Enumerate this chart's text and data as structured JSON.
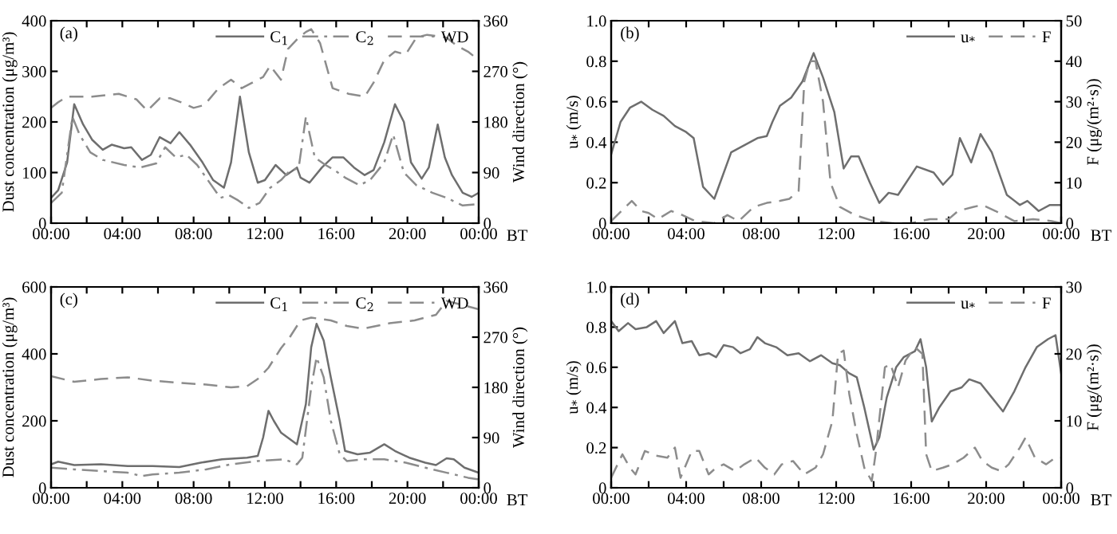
{
  "chart_data": [
    {
      "type": "line",
      "title": "(a)",
      "xlabel": "BT",
      "ylabel": "Dust concentration (μg/m³)",
      "y2label": "Wind direction (°)",
      "legend": "top right",
      "xlim": [
        0,
        24
      ],
      "xticks": [
        {
          "value": 0,
          "label": "00:00"
        },
        {
          "value": 2,
          "label": null
        },
        {
          "value": 4,
          "label": "04:00"
        },
        {
          "value": 6,
          "label": null
        },
        {
          "value": 8,
          "label": "08:00"
        },
        {
          "value": 10,
          "label": null
        },
        {
          "value": 12,
          "label": "12:00"
        },
        {
          "value": 14,
          "label": null
        },
        {
          "value": 16,
          "label": "16:00"
        },
        {
          "value": 18,
          "label": null
        },
        {
          "value": 20,
          "label": "20:00"
        },
        {
          "value": 22,
          "label": null
        },
        {
          "value": 24,
          "label": "00:00"
        }
      ],
      "ylim": [
        0,
        400
      ],
      "yticks": [
        0,
        100,
        200,
        300,
        400
      ],
      "y2lim": [
        0,
        360
      ],
      "y2ticks": [
        0,
        90,
        180,
        270,
        360
      ],
      "series": [
        {
          "name": "C$_{1}$",
          "color": "#6e6e6e",
          "line_style": "solid",
          "x": [
            0,
            0.4,
            0.9,
            1.3,
            1.8,
            2.3,
            2.9,
            3.4,
            4.1,
            4.5,
            5.1,
            5.6,
            6.1,
            6.7,
            7.2,
            7.8,
            8.5,
            9.1,
            9.7,
            10.1,
            10.6,
            11.1,
            11.6,
            12.0,
            12.6,
            13.2,
            13.8,
            14.0,
            14.5,
            15.2,
            15.8,
            16.4,
            17.0,
            17.6,
            18.1,
            18.7,
            19.3,
            19.8,
            20.2,
            20.8,
            21.2,
            21.7,
            22.1,
            22.5,
            23.1,
            23.6,
            24
          ],
          "values": [
            50,
            65,
            120,
            235,
            195,
            165,
            145,
            155,
            148,
            150,
            125,
            135,
            170,
            158,
            180,
            155,
            120,
            85,
            70,
            120,
            250,
            140,
            80,
            85,
            115,
            95,
            110,
            90,
            80,
            110,
            130,
            130,
            110,
            95,
            105,
            160,
            235,
            200,
            120,
            88,
            110,
            195,
            130,
            95,
            60,
            52,
            60
          ]
        },
        {
          "name": "C$_{2}$",
          "color": "#8c8c8c",
          "line_style": "dashdot",
          "x": [
            0,
            0.6,
            1.2,
            1.6,
            2.2,
            2.9,
            4.1,
            5.0,
            5.9,
            6.4,
            7.0,
            7.6,
            8.2,
            8.8,
            9.5,
            10.0,
            10.5,
            11.1,
            11.7,
            12.3,
            12.9,
            13.3,
            13.9,
            14.3,
            14.8,
            15.4,
            15.9,
            16.5,
            17.3,
            17.9,
            18.7,
            19.2,
            19.8,
            20.5,
            21.4,
            22.2,
            23.1,
            24
          ],
          "values": [
            40,
            60,
            210,
            175,
            140,
            125,
            115,
            110,
            118,
            150,
            130,
            135,
            115,
            85,
            50,
            55,
            45,
            30,
            40,
            70,
            85,
            100,
            110,
            210,
            130,
            115,
            105,
            90,
            75,
            85,
            120,
            175,
            100,
            75,
            60,
            50,
            35,
            38
          ]
        },
        {
          "name": "WD",
          "color": "#8c8c8c",
          "line_style": "dashed",
          "axis": "y2",
          "x": [
            0,
            0.4,
            0.9,
            2.3,
            3.8,
            4.8,
            5.4,
            6.1,
            6.7,
            7.3,
            8.0,
            8.6,
            9.4,
            10.1,
            10.7,
            11.3,
            11.9,
            12.3,
            12.9,
            13.3,
            13.9,
            14.3,
            14.6,
            15.1,
            15.8,
            16.7,
            17.6,
            18.1,
            18.7,
            19.3,
            19.9,
            20.5,
            21.1,
            22.2,
            22.8,
            23.4,
            24
          ],
          "values": [
            205,
            215,
            225,
            225,
            230,
            220,
            200,
            222,
            222,
            215,
            205,
            210,
            240,
            255,
            240,
            250,
            260,
            280,
            255,
            310,
            330,
            340,
            345,
            320,
            240,
            230,
            225,
            250,
            290,
            305,
            300,
            330,
            335,
            330,
            315,
            305,
            290
          ]
        }
      ]
    },
    {
      "type": "line",
      "title": "(b)",
      "xlabel": "BT",
      "ylabel": "u$_{*}$ (m/s)",
      "y2label": "F (μg/(m²·s))",
      "legend": "top right",
      "xlim": [
        0,
        24
      ],
      "xticks": [
        {
          "value": 0,
          "label": "00:00"
        },
        {
          "value": 2,
          "label": null
        },
        {
          "value": 4,
          "label": "04:00"
        },
        {
          "value": 6,
          "label": null
        },
        {
          "value": 8,
          "label": "08:00"
        },
        {
          "value": 10,
          "label": null
        },
        {
          "value": 12,
          "label": "12:00"
        },
        {
          "value": 14,
          "label": null
        },
        {
          "value": 16,
          "label": "16:00"
        },
        {
          "value": 18,
          "label": null
        },
        {
          "value": 20,
          "label": "20:00"
        },
        {
          "value": 22,
          "label": null
        },
        {
          "value": 24,
          "label": "00:00"
        }
      ],
      "ylim": [
        0,
        1
      ],
      "yticks": [
        0,
        0.2,
        0.4,
        0.6,
        0.8,
        {
          "value": 1,
          "label": "1.0"
        }
      ],
      "y2lim": [
        0,
        50
      ],
      "y2ticks": [
        0,
        10,
        20,
        30,
        40,
        50
      ],
      "series": [
        {
          "name": "u$_{*}$",
          "color": "#6e6e6e",
          "line_style": "solid",
          "x": [
            0,
            0.5,
            1.0,
            1.6,
            2.2,
            2.8,
            3.4,
            4.0,
            4.4,
            4.9,
            5.5,
            6.4,
            7.8,
            8.3,
            8.6,
            9.0,
            9.6,
            10.2,
            10.8,
            11.3,
            11.9,
            12.4,
            12.8,
            13.2,
            13.8,
            14.3,
            14.8,
            15.3,
            16.3,
            17.2,
            17.7,
            18.2,
            18.6,
            19.2,
            19.7,
            20.3,
            21.1,
            21.8,
            22.2,
            22.8,
            23.4,
            24
          ],
          "values": [
            0.34,
            0.5,
            0.57,
            0.6,
            0.56,
            0.53,
            0.48,
            0.45,
            0.42,
            0.18,
            0.12,
            0.35,
            0.42,
            0.43,
            0.5,
            0.58,
            0.62,
            0.7,
            0.84,
            0.72,
            0.55,
            0.27,
            0.33,
            0.33,
            0.2,
            0.1,
            0.15,
            0.14,
            0.28,
            0.25,
            0.19,
            0.24,
            0.42,
            0.3,
            0.44,
            0.35,
            0.14,
            0.09,
            0.11,
            0.06,
            0.09,
            0.09
          ]
        },
        {
          "name": "F",
          "color": "#8c8c8c",
          "line_style": "dashed",
          "axis": "y2",
          "x": [
            0,
            1.1,
            1.6,
            2.0,
            2.5,
            3.2,
            3.8,
            4.5,
            5.5,
            6.2,
            6.8,
            7.6,
            8.3,
            9.0,
            9.5,
            10.0,
            10.3,
            10.6,
            10.9,
            11.3,
            11.7,
            12.2,
            13.0,
            14.0,
            15.0,
            16.0,
            17.0,
            18.0,
            18.5,
            19.3,
            19.8,
            20.5,
            21.5,
            22.5,
            23.5,
            24
          ],
          "values": [
            0.5,
            5.5,
            3,
            2.5,
            1,
            3,
            2,
            0.5,
            0,
            2,
            0.5,
            4,
            5,
            5.5,
            6,
            8,
            35,
            40,
            40,
            30,
            10,
            4,
            2,
            0.5,
            0,
            0,
            1,
            1,
            3,
            4,
            4.5,
            3,
            0.5,
            1,
            0.5,
            0
          ]
        }
      ]
    },
    {
      "type": "line",
      "title": "(c)",
      "xlabel": "BT",
      "ylabel": "Dust concentration (μg/m³)",
      "y2label": "Wind direction (°)",
      "legend": "top right",
      "xlim": [
        0,
        24
      ],
      "xticks": [
        {
          "value": 0,
          "label": "00:00"
        },
        {
          "value": 2,
          "label": null
        },
        {
          "value": 4,
          "label": "04:00"
        },
        {
          "value": 6,
          "label": null
        },
        {
          "value": 8,
          "label": "08:00"
        },
        {
          "value": 10,
          "label": null
        },
        {
          "value": 12,
          "label": "12:00"
        },
        {
          "value": 14,
          "label": null
        },
        {
          "value": 16,
          "label": "16:00"
        },
        {
          "value": 18,
          "label": null
        },
        {
          "value": 20,
          "label": "20:00"
        },
        {
          "value": 22,
          "label": null
        },
        {
          "value": 24,
          "label": "00:00"
        }
      ],
      "ylim": [
        0,
        600
      ],
      "yticks": [
        0,
        200,
        400,
        600
      ],
      "y2lim": [
        0,
        360
      ],
      "y2ticks": [
        0,
        90,
        180,
        270,
        360
      ],
      "series": [
        {
          "name": "C$_{1}$",
          "color": "#6e6e6e",
          "line_style": "solid",
          "x": [
            0,
            0.4,
            1.3,
            2.8,
            4.3,
            5.7,
            7.2,
            8.4,
            9.6,
            11.0,
            11.6,
            11.9,
            12.2,
            12.5,
            12.9,
            13.8,
            14.3,
            14.6,
            14.9,
            15.3,
            15.7,
            16.2,
            16.5,
            17.2,
            17.9,
            18.7,
            19.3,
            20.1,
            21.0,
            21.6,
            22.2,
            22.6,
            23.2,
            24
          ],
          "values": [
            70,
            78,
            68,
            70,
            65,
            65,
            62,
            75,
            85,
            90,
            95,
            150,
            230,
            200,
            165,
            130,
            250,
            420,
            490,
            440,
            330,
            200,
            110,
            100,
            105,
            130,
            110,
            90,
            75,
            68,
            88,
            85,
            60,
            45
          ]
        },
        {
          "name": "C$_{2}$",
          "color": "#8c8c8c",
          "line_style": "dashdot",
          "x": [
            0,
            1.3,
            2.8,
            4.3,
            5.1,
            5.7,
            7.2,
            8.7,
            10.1,
            11.6,
            13.1,
            13.8,
            14.1,
            14.6,
            14.9,
            15.3,
            15.7,
            16.2,
            16.6,
            17.5,
            18.7,
            19.9,
            21.0,
            22.2,
            23.4,
            24
          ],
          "values": [
            60,
            55,
            50,
            45,
            35,
            40,
            45,
            55,
            70,
            80,
            85,
            70,
            90,
            300,
            390,
            330,
            200,
            100,
            80,
            85,
            85,
            75,
            60,
            45,
            30,
            25
          ]
        },
        {
          "name": "WD",
          "color": "#8c8c8c",
          "line_style": "dashed",
          "axis": "y2",
          "x": [
            0,
            1.3,
            2.8,
            4.3,
            5.7,
            7.2,
            8.7,
            10.1,
            11.0,
            11.6,
            12.2,
            12.9,
            13.4,
            14.0,
            14.6,
            15.7,
            16.6,
            17.5,
            19.0,
            20.4,
            21.6,
            22.2,
            22.8,
            23.4,
            24
          ],
          "values": [
            200,
            190,
            195,
            198,
            192,
            188,
            185,
            180,
            182,
            195,
            215,
            250,
            270,
            300,
            305,
            300,
            290,
            285,
            295,
            300,
            310,
            335,
            330,
            325,
            320
          ]
        }
      ]
    },
    {
      "type": "line",
      "title": "(d)",
      "xlabel": "BT",
      "ylabel": "u$_{*}$ (m/s)",
      "y2label": "F (μg/(m²·s))",
      "legend": "top right",
      "xlim": [
        0,
        24
      ],
      "xticks": [
        {
          "value": 0,
          "label": "00:00"
        },
        {
          "value": 2,
          "label": null
        },
        {
          "value": 4,
          "label": "04:00"
        },
        {
          "value": 6,
          "label": null
        },
        {
          "value": 8,
          "label": "08:00"
        },
        {
          "value": 10,
          "label": null
        },
        {
          "value": 12,
          "label": "12:00"
        },
        {
          "value": 14,
          "label": null
        },
        {
          "value": 16,
          "label": "16:00"
        },
        {
          "value": 18,
          "label": null
        },
        {
          "value": 20,
          "label": "20:00"
        },
        {
          "value": 22,
          "label": null
        },
        {
          "value": 24,
          "label": "00:00"
        }
      ],
      "ylim": [
        0,
        1
      ],
      "yticks": [
        0,
        0.2,
        0.4,
        0.6,
        0.8,
        {
          "value": 1,
          "label": "1.0"
        }
      ],
      "y2lim": [
        0,
        30
      ],
      "y2ticks": [
        0,
        10,
        20,
        30
      ],
      "series": [
        {
          "name": "u$_{*}$",
          "color": "#6e6e6e",
          "line_style": "solid",
          "x": [
            0,
            0.4,
            0.9,
            1.3,
            1.9,
            2.4,
            2.8,
            3.4,
            3.8,
            4.3,
            4.7,
            5.2,
            5.6,
            6.0,
            6.5,
            6.9,
            7.4,
            7.8,
            8.2,
            8.8,
            9.4,
            10.0,
            10.6,
            11.2,
            11.8,
            12.2,
            12.7,
            13.1,
            13.5,
            14.0,
            14.3,
            14.7,
            15.2,
            15.6,
            16.2,
            16.5,
            16.8,
            17.1,
            17.5,
            18.1,
            18.7,
            19.1,
            19.7,
            20.3,
            20.9,
            21.5,
            22.1,
            22.7,
            23.3,
            23.7,
            24
          ],
          "values": [
            0.83,
            0.78,
            0.82,
            0.79,
            0.8,
            0.83,
            0.77,
            0.83,
            0.72,
            0.73,
            0.66,
            0.67,
            0.65,
            0.71,
            0.7,
            0.67,
            0.69,
            0.75,
            0.72,
            0.7,
            0.66,
            0.67,
            0.63,
            0.66,
            0.62,
            0.61,
            0.57,
            0.55,
            0.4,
            0.19,
            0.25,
            0.45,
            0.6,
            0.65,
            0.68,
            0.74,
            0.6,
            0.33,
            0.4,
            0.48,
            0.5,
            0.54,
            0.52,
            0.45,
            0.38,
            0.48,
            0.6,
            0.7,
            0.74,
            0.76,
            0.57
          ]
        },
        {
          "name": "F",
          "color": "#8c8c8c",
          "line_style": "dashed",
          "axis": "y2",
          "x": [
            0,
            0.6,
            1.0,
            1.3,
            1.8,
            2.4,
            3.0,
            3.4,
            3.7,
            4.3,
            4.7,
            5.2,
            5.6,
            6.0,
            6.6,
            7.1,
            7.7,
            8.2,
            8.7,
            9.1,
            9.7,
            10.3,
            10.9,
            11.3,
            11.8,
            12.1,
            12.4,
            12.7,
            13.1,
            13.5,
            13.9,
            14.1,
            14.6,
            14.9,
            15.3,
            15.7,
            16.2,
            16.6,
            16.8,
            17.1,
            17.7,
            18.2,
            18.8,
            19.4,
            19.8,
            20.3,
            20.8,
            21.2,
            21.8,
            22.1,
            22.6,
            23.2,
            23.7,
            24
          ],
          "values": [
            1.5,
            5,
            3,
            2,
            5.5,
            4.8,
            4.5,
            6,
            1.5,
            5.5,
            5.5,
            2,
            3,
            3.5,
            2.5,
            3.5,
            4.5,
            3,
            2,
            3.5,
            4,
            2,
            3,
            5,
            10,
            20,
            20.5,
            14,
            8,
            3,
            1,
            5,
            18,
            18.5,
            15,
            19,
            21,
            20,
            5,
            2.5,
            3,
            3.5,
            4.5,
            6,
            4,
            3,
            2.5,
            3.5,
            6,
            7.5,
            4.5,
            3.5,
            4.5,
            4.5
          ]
        }
      ]
    }
  ]
}
